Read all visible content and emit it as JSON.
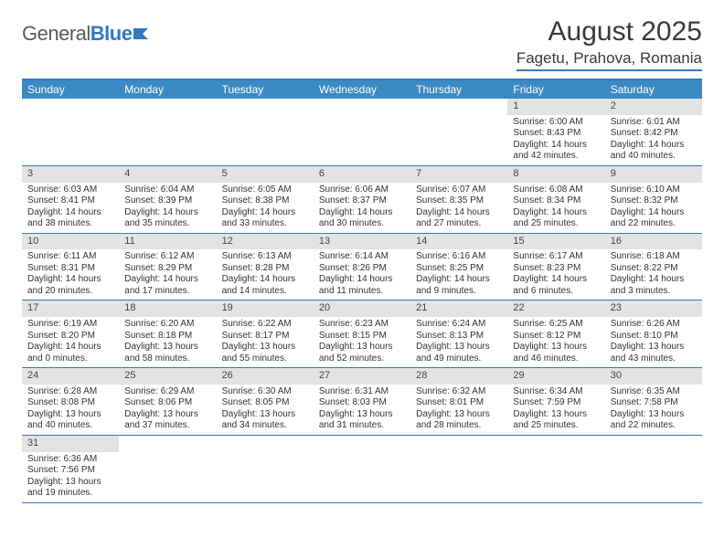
{
  "logo": {
    "text1": "General",
    "text2": "Blue"
  },
  "title": "August 2025",
  "subtitle": "Fagetu, Prahova, Romania",
  "colors": {
    "accent": "#2f7ac0",
    "header_bg": "#3b8ac4",
    "daynum_bg": "#e3e3e3",
    "text": "#333333",
    "logo_gray": "#5a5a5a"
  },
  "day_headers": [
    "Sunday",
    "Monday",
    "Tuesday",
    "Wednesday",
    "Thursday",
    "Friday",
    "Saturday"
  ],
  "weeks": [
    [
      null,
      null,
      null,
      null,
      null,
      {
        "n": "1",
        "sr": "6:00 AM",
        "ss": "8:43 PM",
        "dh": "14",
        "dm": "42"
      },
      {
        "n": "2",
        "sr": "6:01 AM",
        "ss": "8:42 PM",
        "dh": "14",
        "dm": "40"
      }
    ],
    [
      {
        "n": "3",
        "sr": "6:03 AM",
        "ss": "8:41 PM",
        "dh": "14",
        "dm": "38"
      },
      {
        "n": "4",
        "sr": "6:04 AM",
        "ss": "8:39 PM",
        "dh": "14",
        "dm": "35"
      },
      {
        "n": "5",
        "sr": "6:05 AM",
        "ss": "8:38 PM",
        "dh": "14",
        "dm": "33"
      },
      {
        "n": "6",
        "sr": "6:06 AM",
        "ss": "8:37 PM",
        "dh": "14",
        "dm": "30"
      },
      {
        "n": "7",
        "sr": "6:07 AM",
        "ss": "8:35 PM",
        "dh": "14",
        "dm": "27"
      },
      {
        "n": "8",
        "sr": "6:08 AM",
        "ss": "8:34 PM",
        "dh": "14",
        "dm": "25"
      },
      {
        "n": "9",
        "sr": "6:10 AM",
        "ss": "8:32 PM",
        "dh": "14",
        "dm": "22"
      }
    ],
    [
      {
        "n": "10",
        "sr": "6:11 AM",
        "ss": "8:31 PM",
        "dh": "14",
        "dm": "20"
      },
      {
        "n": "11",
        "sr": "6:12 AM",
        "ss": "8:29 PM",
        "dh": "14",
        "dm": "17"
      },
      {
        "n": "12",
        "sr": "6:13 AM",
        "ss": "8:28 PM",
        "dh": "14",
        "dm": "14"
      },
      {
        "n": "13",
        "sr": "6:14 AM",
        "ss": "8:26 PM",
        "dh": "14",
        "dm": "11"
      },
      {
        "n": "14",
        "sr": "6:16 AM",
        "ss": "8:25 PM",
        "dh": "14",
        "dm": "9"
      },
      {
        "n": "15",
        "sr": "6:17 AM",
        "ss": "8:23 PM",
        "dh": "14",
        "dm": "6"
      },
      {
        "n": "16",
        "sr": "6:18 AM",
        "ss": "8:22 PM",
        "dh": "14",
        "dm": "3"
      }
    ],
    [
      {
        "n": "17",
        "sr": "6:19 AM",
        "ss": "8:20 PM",
        "dh": "14",
        "dm": "0"
      },
      {
        "n": "18",
        "sr": "6:20 AM",
        "ss": "8:18 PM",
        "dh": "13",
        "dm": "58"
      },
      {
        "n": "19",
        "sr": "6:22 AM",
        "ss": "8:17 PM",
        "dh": "13",
        "dm": "55"
      },
      {
        "n": "20",
        "sr": "6:23 AM",
        "ss": "8:15 PM",
        "dh": "13",
        "dm": "52"
      },
      {
        "n": "21",
        "sr": "6:24 AM",
        "ss": "8:13 PM",
        "dh": "13",
        "dm": "49"
      },
      {
        "n": "22",
        "sr": "6:25 AM",
        "ss": "8:12 PM",
        "dh": "13",
        "dm": "46"
      },
      {
        "n": "23",
        "sr": "6:26 AM",
        "ss": "8:10 PM",
        "dh": "13",
        "dm": "43"
      }
    ],
    [
      {
        "n": "24",
        "sr": "6:28 AM",
        "ss": "8:08 PM",
        "dh": "13",
        "dm": "40"
      },
      {
        "n": "25",
        "sr": "6:29 AM",
        "ss": "8:06 PM",
        "dh": "13",
        "dm": "37"
      },
      {
        "n": "26",
        "sr": "6:30 AM",
        "ss": "8:05 PM",
        "dh": "13",
        "dm": "34"
      },
      {
        "n": "27",
        "sr": "6:31 AM",
        "ss": "8:03 PM",
        "dh": "13",
        "dm": "31"
      },
      {
        "n": "28",
        "sr": "6:32 AM",
        "ss": "8:01 PM",
        "dh": "13",
        "dm": "28"
      },
      {
        "n": "29",
        "sr": "6:34 AM",
        "ss": "7:59 PM",
        "dh": "13",
        "dm": "25"
      },
      {
        "n": "30",
        "sr": "6:35 AM",
        "ss": "7:58 PM",
        "dh": "13",
        "dm": "22"
      }
    ],
    [
      {
        "n": "31",
        "sr": "6:36 AM",
        "ss": "7:56 PM",
        "dh": "13",
        "dm": "19"
      },
      null,
      null,
      null,
      null,
      null,
      null
    ]
  ],
  "labels": {
    "sunrise": "Sunrise:",
    "sunset": "Sunset:",
    "daylight": "Daylight:",
    "hours": "hours",
    "and": "and",
    "minutes": "minutes."
  }
}
